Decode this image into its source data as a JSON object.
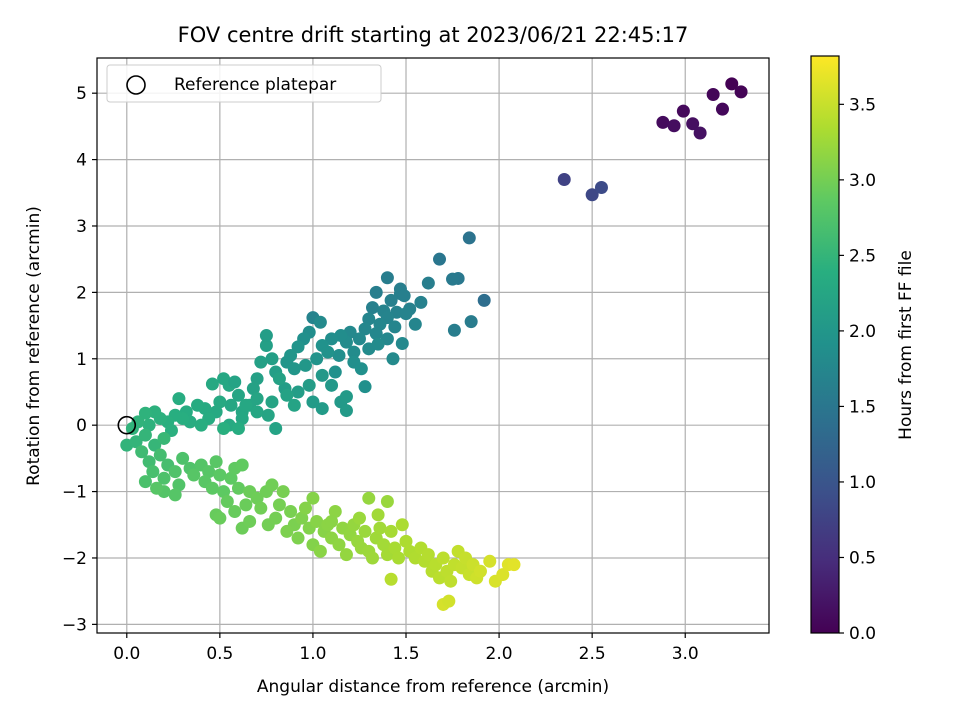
{
  "chart_data": {
    "type": "scatter",
    "title": "FOV centre drift starting at 2023/06/21 22:45:17",
    "xlabel": "Angular distance from reference (arcmin)",
    "ylabel": "Rotation from reference (arcmin)",
    "xlim": [
      -0.16,
      3.45
    ],
    "ylim": [
      -3.13,
      5.53
    ],
    "xticks": [
      0.0,
      0.5,
      1.0,
      1.5,
      2.0,
      2.5,
      3.0
    ],
    "xtick_labels": [
      "0.0",
      "0.5",
      "1.0",
      "1.5",
      "2.0",
      "2.5",
      "3.0"
    ],
    "yticks": [
      -3,
      -2,
      -1,
      0,
      1,
      2,
      3,
      4,
      5
    ],
    "ytick_labels": [
      "−3",
      "−2",
      "−1",
      "0",
      "1",
      "2",
      "3",
      "4",
      "5"
    ],
    "grid": true,
    "legend": {
      "position": "top-left",
      "entries": [
        "Reference platepar"
      ]
    },
    "reference_point": {
      "x": 0.0,
      "y": 0.0
    },
    "colorbar": {
      "label": "Hours from first FF file",
      "range": [
        0.0,
        3.82
      ],
      "ticks": [
        0.0,
        0.5,
        1.0,
        1.5,
        2.0,
        2.5,
        3.0,
        3.5
      ],
      "tick_labels": [
        "0.0",
        "0.5",
        "1.0",
        "1.5",
        "2.0",
        "2.5",
        "3.0",
        "3.5"
      ],
      "colormap": "viridis"
    },
    "points": [
      [
        3.25,
        5.14,
        0.0
      ],
      [
        3.3,
        5.02,
        0.03
      ],
      [
        3.15,
        4.98,
        0.05
      ],
      [
        3.2,
        4.76,
        0.07
      ],
      [
        2.99,
        4.73,
        0.09
      ],
      [
        2.88,
        4.56,
        0.11
      ],
      [
        2.94,
        4.51,
        0.13
      ],
      [
        3.04,
        4.54,
        0.15
      ],
      [
        3.08,
        4.4,
        0.17
      ],
      [
        2.35,
        3.7,
        0.75
      ],
      [
        2.5,
        3.47,
        0.82
      ],
      [
        2.55,
        3.58,
        0.86
      ],
      [
        1.84,
        2.82,
        1.45
      ],
      [
        1.68,
        2.5,
        1.5
      ],
      [
        1.92,
        1.88,
        1.38
      ],
      [
        1.78,
        2.21,
        1.52
      ],
      [
        1.75,
        2.2,
        1.55
      ],
      [
        1.85,
        1.56,
        1.58
      ],
      [
        1.76,
        1.43,
        1.6
      ],
      [
        1.62,
        2.14,
        1.62
      ],
      [
        1.4,
        2.22,
        1.6
      ],
      [
        1.47,
        2.05,
        1.62
      ],
      [
        1.47,
        1.98,
        1.63
      ],
      [
        1.49,
        1.95,
        1.64
      ],
      [
        1.42,
        1.88,
        1.65
      ],
      [
        1.34,
        2.0,
        1.62
      ],
      [
        1.58,
        1.85,
        1.66
      ],
      [
        1.52,
        1.75,
        1.67
      ],
      [
        1.45,
        1.7,
        1.68
      ],
      [
        1.5,
        1.68,
        1.69
      ],
      [
        1.32,
        1.77,
        1.65
      ],
      [
        1.38,
        1.72,
        1.7
      ],
      [
        1.4,
        1.62,
        1.71
      ],
      [
        1.55,
        1.52,
        1.72
      ],
      [
        1.44,
        1.48,
        1.73
      ],
      [
        1.36,
        1.52,
        1.74
      ],
      [
        1.3,
        1.6,
        1.72
      ],
      [
        1.28,
        1.45,
        1.75
      ],
      [
        1.34,
        1.38,
        1.76
      ],
      [
        1.4,
        1.3,
        1.77
      ],
      [
        1.2,
        1.4,
        1.78
      ],
      [
        1.25,
        1.3,
        1.79
      ],
      [
        1.48,
        1.23,
        1.78
      ],
      [
        1.43,
        1.0,
        1.8
      ],
      [
        1.3,
        1.15,
        1.81
      ],
      [
        1.35,
        1.22,
        1.82
      ],
      [
        1.18,
        1.25,
        1.83
      ],
      [
        1.22,
        1.1,
        1.84
      ],
      [
        1.15,
        1.35,
        1.85
      ],
      [
        1.1,
        1.3,
        1.86
      ],
      [
        1.14,
        1.05,
        1.87
      ],
      [
        1.22,
        0.95,
        1.88
      ],
      [
        1.26,
        0.85,
        1.89
      ],
      [
        1.28,
        0.58,
        1.9
      ],
      [
        1.12,
        0.8,
        1.91
      ],
      [
        1.05,
        1.2,
        1.92
      ],
      [
        1.08,
        1.1,
        1.93
      ],
      [
        1.0,
        1.62,
        1.7
      ],
      [
        1.04,
        1.55,
        1.8
      ],
      [
        0.98,
        1.4,
        1.85
      ],
      [
        0.95,
        1.3,
        1.9
      ],
      [
        1.02,
        1.0,
        1.95
      ],
      [
        0.92,
        1.18,
        1.96
      ],
      [
        0.88,
        1.05,
        1.97
      ],
      [
        0.86,
        0.95,
        1.98
      ],
      [
        0.9,
        0.85,
        2.0
      ],
      [
        0.96,
        0.9,
        2.01
      ],
      [
        1.05,
        0.75,
        2.02
      ],
      [
        1.1,
        0.6,
        2.03
      ],
      [
        1.15,
        0.35,
        2.04
      ],
      [
        1.18,
        0.22,
        2.05
      ],
      [
        1.18,
        0.43,
        2.06
      ],
      [
        1.0,
        0.35,
        2.07
      ],
      [
        1.05,
        0.25,
        2.08
      ],
      [
        0.98,
        0.6,
        2.09
      ],
      [
        0.92,
        0.5,
        2.1
      ],
      [
        0.85,
        0.55,
        2.11
      ],
      [
        0.8,
        0.8,
        2.12
      ],
      [
        0.78,
        1.0,
        2.13
      ],
      [
        0.75,
        1.2,
        2.14
      ],
      [
        0.75,
        1.35,
        2.1
      ],
      [
        0.72,
        0.95,
        2.15
      ],
      [
        0.7,
        0.7,
        2.16
      ],
      [
        0.68,
        0.55,
        2.17
      ],
      [
        0.82,
        0.7,
        2.18
      ],
      [
        0.86,
        0.45,
        2.19
      ],
      [
        0.9,
        0.3,
        2.2
      ],
      [
        0.78,
        0.35,
        2.21
      ],
      [
        0.7,
        0.4,
        2.22
      ],
      [
        0.66,
        0.3,
        2.23
      ],
      [
        0.6,
        0.45,
        2.24
      ],
      [
        0.62,
        0.2,
        2.25
      ],
      [
        0.56,
        0.3,
        2.26
      ],
      [
        0.55,
        0.6,
        2.27
      ],
      [
        0.52,
        0.7,
        2.28
      ],
      [
        0.46,
        0.62,
        2.29
      ],
      [
        0.5,
        0.35,
        2.3
      ],
      [
        0.48,
        0.2,
        2.31
      ],
      [
        0.42,
        0.25,
        2.32
      ],
      [
        0.44,
        0.1,
        2.33
      ],
      [
        0.38,
        0.3,
        2.34
      ],
      [
        0.32,
        0.2,
        2.35
      ],
      [
        0.34,
        0.05,
        2.36
      ],
      [
        0.4,
        0.0,
        2.37
      ],
      [
        0.28,
        0.4,
        2.36
      ],
      [
        0.3,
        0.1,
        2.38
      ],
      [
        0.26,
        0.15,
        2.39
      ],
      [
        0.22,
        0.05,
        2.4
      ],
      [
        0.24,
        -0.08,
        2.41
      ],
      [
        0.18,
        0.1,
        2.42
      ],
      [
        0.15,
        0.2,
        2.43
      ],
      [
        0.12,
        0.0,
        2.44
      ],
      [
        0.1,
        0.18,
        2.45
      ],
      [
        0.06,
        0.05,
        2.46
      ],
      [
        0.03,
        -0.05,
        2.47
      ],
      [
        0.0,
        -0.3,
        2.48
      ],
      [
        0.05,
        -0.25,
        2.49
      ],
      [
        0.1,
        -0.15,
        2.5
      ],
      [
        0.15,
        -0.3,
        2.52
      ],
      [
        0.2,
        -0.2,
        2.54
      ],
      [
        0.55,
        0.0,
        2.3
      ],
      [
        0.62,
        0.1,
        2.28
      ],
      [
        0.7,
        0.2,
        2.25
      ],
      [
        0.76,
        0.15,
        2.22
      ],
      [
        0.8,
        -0.05,
        2.2
      ],
      [
        0.6,
        -0.05,
        2.35
      ],
      [
        0.52,
        -0.05,
        2.4
      ],
      [
        0.58,
        0.65,
        2.2
      ],
      [
        0.64,
        0.3,
        2.27
      ],
      [
        0.08,
        -0.4,
        2.6
      ],
      [
        0.12,
        -0.55,
        2.62
      ],
      [
        0.18,
        -0.45,
        2.64
      ],
      [
        0.22,
        -0.6,
        2.66
      ],
      [
        0.14,
        -0.7,
        2.68
      ],
      [
        0.1,
        -0.85,
        2.7
      ],
      [
        0.2,
        -0.8,
        2.72
      ],
      [
        0.26,
        -0.7,
        2.74
      ],
      [
        0.3,
        -0.5,
        2.72
      ],
      [
        0.34,
        -0.65,
        2.74
      ],
      [
        0.28,
        -0.9,
        2.76
      ],
      [
        0.2,
        -1.0,
        2.78
      ],
      [
        0.26,
        -1.05,
        2.79
      ],
      [
        0.16,
        -0.95,
        2.8
      ],
      [
        0.36,
        -0.75,
        2.8
      ],
      [
        0.4,
        -0.6,
        2.78
      ],
      [
        0.44,
        -0.7,
        2.8
      ],
      [
        0.42,
        -0.85,
        2.82
      ],
      [
        0.48,
        -0.55,
        2.82
      ],
      [
        0.5,
        -0.75,
        2.84
      ],
      [
        0.46,
        -0.95,
        2.85
      ],
      [
        0.52,
        -1.0,
        2.86
      ],
      [
        0.56,
        -0.8,
        2.86
      ],
      [
        0.58,
        -0.65,
        2.87
      ],
      [
        0.62,
        -0.6,
        2.88
      ],
      [
        0.6,
        -0.95,
        2.89
      ],
      [
        0.54,
        -1.15,
        2.9
      ],
      [
        0.48,
        -1.35,
        2.92
      ],
      [
        0.5,
        -1.4,
        2.93
      ],
      [
        0.58,
        -1.3,
        2.92
      ],
      [
        0.64,
        -1.2,
        2.94
      ],
      [
        0.66,
        -1.0,
        2.95
      ],
      [
        0.7,
        -1.1,
        2.96
      ],
      [
        0.62,
        -1.55,
        2.95
      ],
      [
        0.66,
        -1.45,
        2.96
      ],
      [
        0.75,
        -1.0,
        2.97
      ],
      [
        0.72,
        -1.25,
        2.98
      ],
      [
        0.76,
        -1.5,
        2.99
      ],
      [
        0.8,
        -1.4,
        3.0
      ],
      [
        0.78,
        -0.9,
        2.98
      ],
      [
        0.82,
        -1.2,
        3.01
      ],
      [
        0.84,
        -1.0,
        3.02
      ],
      [
        0.88,
        -1.3,
        3.03
      ],
      [
        0.9,
        -1.5,
        3.04
      ],
      [
        0.86,
        -1.6,
        3.05
      ],
      [
        0.92,
        -1.7,
        3.06
      ],
      [
        0.94,
        -1.4,
        3.07
      ],
      [
        0.98,
        -1.55,
        3.08
      ],
      [
        1.0,
        -1.8,
        3.09
      ],
      [
        0.96,
        -1.25,
        3.1
      ],
      [
        1.02,
        -1.45,
        3.11
      ],
      [
        1.06,
        -1.6,
        3.12
      ],
      [
        1.04,
        -1.9,
        3.13
      ],
      [
        1.08,
        -1.5,
        3.14
      ],
      [
        1.1,
        -1.7,
        3.15
      ],
      [
        1.12,
        -1.3,
        3.15
      ],
      [
        1.14,
        -1.8,
        3.16
      ],
      [
        1.16,
        -1.55,
        3.17
      ],
      [
        1.2,
        -1.65,
        3.18
      ],
      [
        1.18,
        -1.95,
        3.19
      ],
      [
        1.22,
        -1.5,
        3.2
      ],
      [
        1.24,
        -1.75,
        3.21
      ],
      [
        1.26,
        -1.85,
        3.22
      ],
      [
        1.28,
        -1.6,
        3.23
      ],
      [
        1.3,
        -1.9,
        3.24
      ],
      [
        1.32,
        -2.0,
        3.25
      ],
      [
        1.34,
        -1.7,
        3.26
      ],
      [
        1.36,
        -1.55,
        3.27
      ],
      [
        1.38,
        -1.8,
        3.28
      ],
      [
        1.4,
        -1.95,
        3.29
      ],
      [
        1.42,
        -1.6,
        3.3
      ],
      [
        1.44,
        -1.85,
        3.31
      ],
      [
        1.46,
        -2.0,
        3.32
      ],
      [
        1.48,
        -1.5,
        3.33
      ],
      [
        1.5,
        -1.75,
        3.34
      ],
      [
        1.52,
        -1.9,
        3.35
      ],
      [
        1.55,
        -2.0,
        3.36
      ],
      [
        1.58,
        -1.85,
        3.37
      ],
      [
        1.6,
        -2.05,
        3.38
      ],
      [
        1.62,
        -1.95,
        3.39
      ],
      [
        1.64,
        -2.2,
        3.4
      ],
      [
        1.66,
        -2.1,
        3.41
      ],
      [
        1.68,
        -2.3,
        3.42
      ],
      [
        1.7,
        -2.0,
        3.43
      ],
      [
        1.72,
        -2.2,
        3.44
      ],
      [
        1.74,
        -2.35,
        3.45
      ],
      [
        1.76,
        -2.1,
        3.46
      ],
      [
        1.78,
        -1.9,
        3.47
      ],
      [
        1.8,
        -2.15,
        3.48
      ],
      [
        1.82,
        -2.0,
        3.49
      ],
      [
        1.84,
        -2.25,
        3.5
      ],
      [
        1.86,
        -2.1,
        3.52
      ],
      [
        1.88,
        -2.3,
        3.54
      ],
      [
        1.9,
        -2.2,
        3.56
      ],
      [
        1.95,
        -2.05,
        3.58
      ],
      [
        1.98,
        -2.35,
        3.6
      ],
      [
        2.02,
        -2.25,
        3.62
      ],
      [
        2.05,
        -2.1,
        3.64
      ],
      [
        2.08,
        -2.1,
        3.66
      ],
      [
        1.7,
        -2.7,
        3.58
      ],
      [
        1.73,
        -2.65,
        3.56
      ],
      [
        1.42,
        -2.32,
        3.4
      ],
      [
        1.3,
        -1.1,
        3.2
      ],
      [
        1.4,
        -1.15,
        3.22
      ],
      [
        1.0,
        -1.1,
        3.1
      ],
      [
        1.1,
        -1.45,
        3.14
      ],
      [
        1.35,
        -1.35,
        3.27
      ],
      [
        1.25,
        -1.4,
        3.23
      ]
    ]
  }
}
